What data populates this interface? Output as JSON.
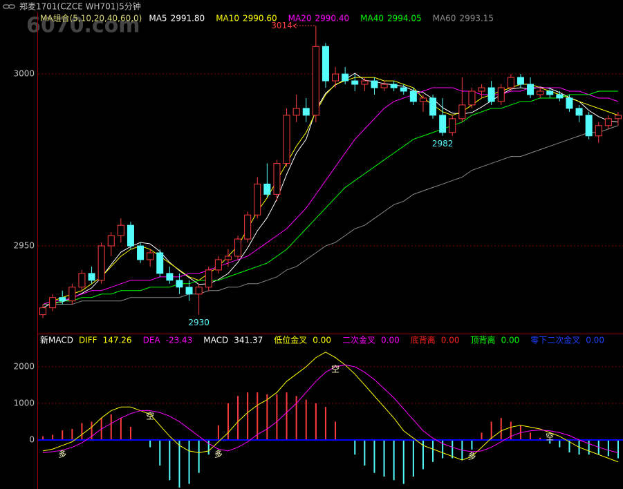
{
  "chart_data": [
    {
      "type": "candlestick",
      "title": "郑麦1701(CZCE WH701)5分钟",
      "watermark": "6070.com",
      "legend_title": "MA组合(5,10,20,40,60,0)",
      "up_color": "#ff3c3c",
      "down_color": "#54fcfc",
      "open": [
        2930,
        2932,
        2935,
        2934,
        2938,
        2942,
        2940,
        2950,
        2953,
        2956,
        2950,
        2946,
        2948,
        2942,
        2940,
        2938,
        2936,
        2938,
        2943,
        2946,
        2947,
        2952,
        2959,
        2968,
        2965,
        2974,
        2988,
        2990,
        2988,
        3008,
        2998,
        3000,
        2998,
        2997,
        2998,
        2996,
        2997,
        2996,
        2995,
        2992,
        2993,
        2988,
        2983,
        2987,
        2991,
        2995,
        2996,
        2992,
        2996,
        2999,
        2997,
        2994,
        2995,
        2994,
        2993,
        2990,
        2988,
        2982,
        2985,
        2987
      ],
      "high": [
        2933,
        2936,
        2937,
        2939,
        2943,
        2944,
        2951,
        2954,
        2958,
        2957,
        2951,
        2949,
        2949,
        2944,
        2942,
        2940,
        2939,
        2944,
        2947,
        2949,
        2953,
        2960,
        2970,
        2974,
        2975,
        2990,
        2994,
        2993,
        3014,
        3009,
        3002,
        3002,
        3000,
        2999,
        2999,
        2998,
        2998,
        2997,
        2996,
        2994,
        2994,
        2993,
        2988,
        2999,
        2996,
        2997,
        2998,
        2997,
        3000,
        3000,
        2999,
        2996,
        2996,
        2995,
        2994,
        2991,
        2989,
        2986,
        2988,
        2989
      ],
      "low": [
        2929,
        2931,
        2933,
        2933,
        2937,
        2939,
        2939,
        2947,
        2951,
        2949,
        2945,
        2944,
        2941,
        2939,
        2936,
        2934,
        2930,
        2937,
        2942,
        2944,
        2946,
        2951,
        2958,
        2964,
        2963,
        2973,
        2986,
        2986,
        2986,
        2996,
        2996,
        2997,
        2995,
        2995,
        2994,
        2995,
        2995,
        2994,
        2991,
        2989,
        2987,
        2982,
        2982,
        2986,
        2990,
        2993,
        2991,
        2991,
        2995,
        2996,
        2993,
        2993,
        2993,
        2992,
        2989,
        2986,
        2981,
        2980,
        2984,
        2985
      ],
      "close": [
        2932,
        2935,
        2934,
        2938,
        2942,
        2940,
        2950,
        2953,
        2956,
        2950,
        2946,
        2948,
        2942,
        2940,
        2938,
        2936,
        2938,
        2943,
        2946,
        2947,
        2952,
        2959,
        2968,
        2965,
        2974,
        2988,
        2990,
        2988,
        3008,
        2998,
        3000,
        2998,
        2997,
        2998,
        2996,
        2997,
        2996,
        2995,
        2992,
        2993,
        2988,
        2983,
        2987,
        2991,
        2995,
        2996,
        2992,
        2996,
        2999,
        2997,
        2994,
        2995,
        2994,
        2993,
        2990,
        2988,
        2982,
        2985,
        2987,
        2988
      ],
      "series": [
        {
          "name": "MA5",
          "color": "#ffffff",
          "current": {
            "value": 2991.8,
            "label": "2991.80"
          },
          "values": [
            2932,
            2933.5,
            2933.7,
            2934.8,
            2936.2,
            2937.8,
            2940.8,
            2944.6,
            2948.2,
            2949.8,
            2951,
            2950.6,
            2948.4,
            2945.2,
            2942.8,
            2940.8,
            2938.8,
            2939,
            2940.2,
            2942,
            2945.2,
            2949.4,
            2954.4,
            2958.2,
            2963.6,
            2970.8,
            2977,
            2981,
            2989.6,
            2994.4,
            2996.8,
            2998.4,
            3000.2,
            2998.2,
            2997.8,
            2997.2,
            2996.8,
            2996.4,
            2995.2,
            2994.6,
            2992.8,
            2990.2,
            2988.6,
            2988.4,
            2988.8,
            2990.4,
            2992.2,
            2994,
            2995.6,
            2996,
            2995.6,
            2996.2,
            2995.8,
            2994.6,
            2993.2,
            2992,
            2989.4,
            2987.6,
            2986.4,
            2986
          ]
        },
        {
          "name": "MA10",
          "color": "#ffff00",
          "current": {
            "value": 2990.6,
            "label": "2990.60"
          },
          "values": [
            2933,
            2934,
            2935,
            2936,
            2937,
            2939,
            2941,
            2944,
            2947,
            2949,
            2950,
            2949,
            2947,
            2945,
            2943,
            2941,
            2940,
            2942,
            2944,
            2947,
            2950,
            2955,
            2960,
            2964,
            2969,
            2974,
            2979,
            2983,
            2989,
            2994,
            2997,
            2998,
            2999,
            2999,
            2999,
            2998,
            2998,
            2997,
            2996,
            2993,
            2991,
            2989,
            2988,
            2989,
            2991,
            2993,
            2994,
            2995,
            2996,
            2997,
            2997,
            2996,
            2995,
            2994,
            2993,
            2992,
            2991,
            2990,
            2989,
            2988
          ]
        },
        {
          "name": "MA20",
          "color": "#ff00ff",
          "current": {
            "value": 2990.4,
            "label": "2990.40"
          },
          "values": [
            2933,
            2934,
            2934,
            2935,
            2936,
            2937,
            2937,
            2938,
            2939,
            2940,
            2940,
            2940,
            2941,
            2941,
            2941,
            2942,
            2942,
            2943,
            2944,
            2945,
            2946,
            2947,
            2949,
            2951,
            2953,
            2955,
            2958,
            2961,
            2965,
            2969,
            2973,
            2977,
            2981,
            2984,
            2987,
            2990,
            2992,
            2993,
            2994,
            2995,
            2996,
            2996,
            2996,
            2995,
            2995,
            2994,
            2994,
            2994,
            2995,
            2995,
            2996,
            2996,
            2996,
            2996,
            2995,
            2995,
            2994,
            2993,
            2993,
            2992
          ]
        },
        {
          "name": "MA40",
          "color": "#00ff00",
          "current": 2994.05,
          "values": [
            2933,
            2933,
            2934,
            2934,
            2935,
            2935,
            2936,
            2936,
            2937,
            2937,
            2937,
            2938,
            2938,
            2938,
            2939,
            2939,
            2940,
            2940,
            2940,
            2941,
            2942,
            2943,
            2944,
            2945,
            2947,
            2949,
            2952,
            2955,
            2958,
            2961,
            2964,
            2967,
            2969,
            2971,
            2973,
            2975,
            2977,
            2979,
            2981,
            2982,
            2983,
            2984,
            2985,
            2986,
            2988,
            2989,
            2990,
            2990,
            2991,
            2992,
            2992,
            2993,
            2993,
            2993,
            2994,
            2994,
            2994,
            2995,
            2995,
            2995
          ]
        },
        {
          "name": "MA60",
          "color": "#8c8c8c",
          "current": 2993.15,
          "values": [
            2933,
            2933,
            2933,
            2933,
            2934,
            2934,
            2934,
            2934,
            2934,
            2935,
            2935,
            2935,
            2935,
            2935,
            2935,
            2936,
            2936,
            2937,
            2937,
            2938,
            2938,
            2939,
            2939,
            2940,
            2941,
            2943,
            2944,
            2946,
            2948,
            2950,
            2951,
            2953,
            2955,
            2956,
            2958,
            2960,
            2962,
            2963,
            2965,
            2966,
            2967,
            2968,
            2969,
            2970,
            2972,
            2973,
            2974,
            2975,
            2976,
            2976,
            2977,
            2978,
            2979,
            2980,
            2981,
            2982,
            2983,
            2983,
            2984,
            2985
          ]
        }
      ],
      "ylim": [
        2924.7,
        3017.9
      ],
      "yticks": [
        2950,
        3000
      ],
      "grid": true,
      "annotations": [
        {
          "label": "3014",
          "index": 28,
          "value": 3014,
          "color": "#ff3c3c",
          "style": "arrow"
        },
        {
          "label": "2982",
          "index": 41,
          "value": 2982,
          "color": "#54fcfc",
          "style": "below"
        },
        {
          "label": "2930",
          "index": 16,
          "value": 2930,
          "color": "#54fcfc",
          "style": "below"
        }
      ]
    },
    {
      "type": "macd",
      "title": "新MACD",
      "up_color": "#ff3c3c",
      "down_color": "#54fcfc",
      "series": [
        {
          "name": "DIFF",
          "color": "#ffff00",
          "style": "line",
          "current": 147.26,
          "values": [
            -300,
            -250,
            -150,
            -50,
            150,
            350,
            600,
            800,
            900,
            900,
            800,
            700,
            400,
            100,
            -150,
            -300,
            -350,
            -300,
            -50,
            200,
            500,
            750,
            950,
            1100,
            1300,
            1600,
            1800,
            2000,
            2250,
            2400,
            2250,
            2050,
            1800,
            1500,
            1200,
            900,
            600,
            250,
            50,
            -150,
            -250,
            -350,
            -450,
            -550,
            -450,
            -200,
            50,
            250,
            350,
            400,
            350,
            300,
            200,
            100,
            -50,
            -200,
            -300,
            -400,
            -500,
            -600
          ]
        },
        {
          "name": "DEA",
          "color": "#ff00ff",
          "style": "line",
          "current": -23.43,
          "values": [
            -350,
            -320,
            -280,
            -200,
            -80,
            100,
            300,
            450,
            600,
            720,
            800,
            800,
            750,
            650,
            500,
            300,
            100,
            -100,
            -250,
            -300,
            -200,
            -50,
            150,
            300,
            500,
            750,
            1000,
            1300,
            1600,
            1850,
            2000,
            2050,
            2000,
            1850,
            1650,
            1400,
            1150,
            850,
            550,
            250,
            50,
            -100,
            -200,
            -280,
            -320,
            -300,
            -200,
            -50,
            100,
            200,
            250,
            270,
            250,
            200,
            120,
            0,
            -100,
            -200,
            -280,
            -350
          ]
        },
        {
          "name": "MACD",
          "color": "#ffffff",
          "style": "bar",
          "current": 341.37,
          "values": [
            100,
            140,
            260,
            300,
            460,
            500,
            600,
            700,
            600,
            360,
            0,
            -200,
            -700,
            -1100,
            -1300,
            -1200,
            -900,
            -400,
            400,
            1000,
            1200,
            1300,
            1300,
            1250,
            1250,
            1300,
            1200,
            1100,
            1000,
            900,
            500,
            0,
            -400,
            -700,
            -900,
            -1000,
            -1100,
            -1200,
            -1000,
            -800,
            -600,
            -500,
            -500,
            -540,
            -260,
            200,
            500,
            600,
            500,
            400,
            200,
            60,
            -100,
            -200,
            -340,
            -400,
            -400,
            -400,
            -440,
            -500
          ]
        }
      ],
      "signals": [
        {
          "name": "低位金叉",
          "color": "#ffff00",
          "current": {
            "value": 0,
            "label": "0.00"
          }
        },
        {
          "name": "二次金叉",
          "color": "#ff00ff",
          "current": {
            "value": 0,
            "label": "0.00"
          }
        },
        {
          "name": "底背离",
          "color": "#ff2020",
          "current": {
            "value": 0,
            "label": "0.00"
          }
        },
        {
          "name": "顶背离",
          "color": "#00ff00",
          "current": {
            "value": 0,
            "label": "0.00"
          }
        },
        {
          "name": "零下二次金叉",
          "color": "#2040ff",
          "current": {
            "value": 0,
            "label": "0.00"
          }
        }
      ],
      "ylim": [
        -1340,
        2490
      ],
      "yticks": [
        0,
        1000,
        2000
      ],
      "grid": true,
      "annotations": [
        {
          "label": "多",
          "index": 2,
          "value": -400
        },
        {
          "label": "空",
          "index": 11,
          "value": 640
        },
        {
          "label": "多",
          "index": 18,
          "value": -400
        },
        {
          "label": "空",
          "index": 30,
          "value": 1925
        },
        {
          "label": "多",
          "index": 44,
          "value": -450
        },
        {
          "label": "空",
          "index": 52,
          "value": 75
        }
      ]
    }
  ]
}
